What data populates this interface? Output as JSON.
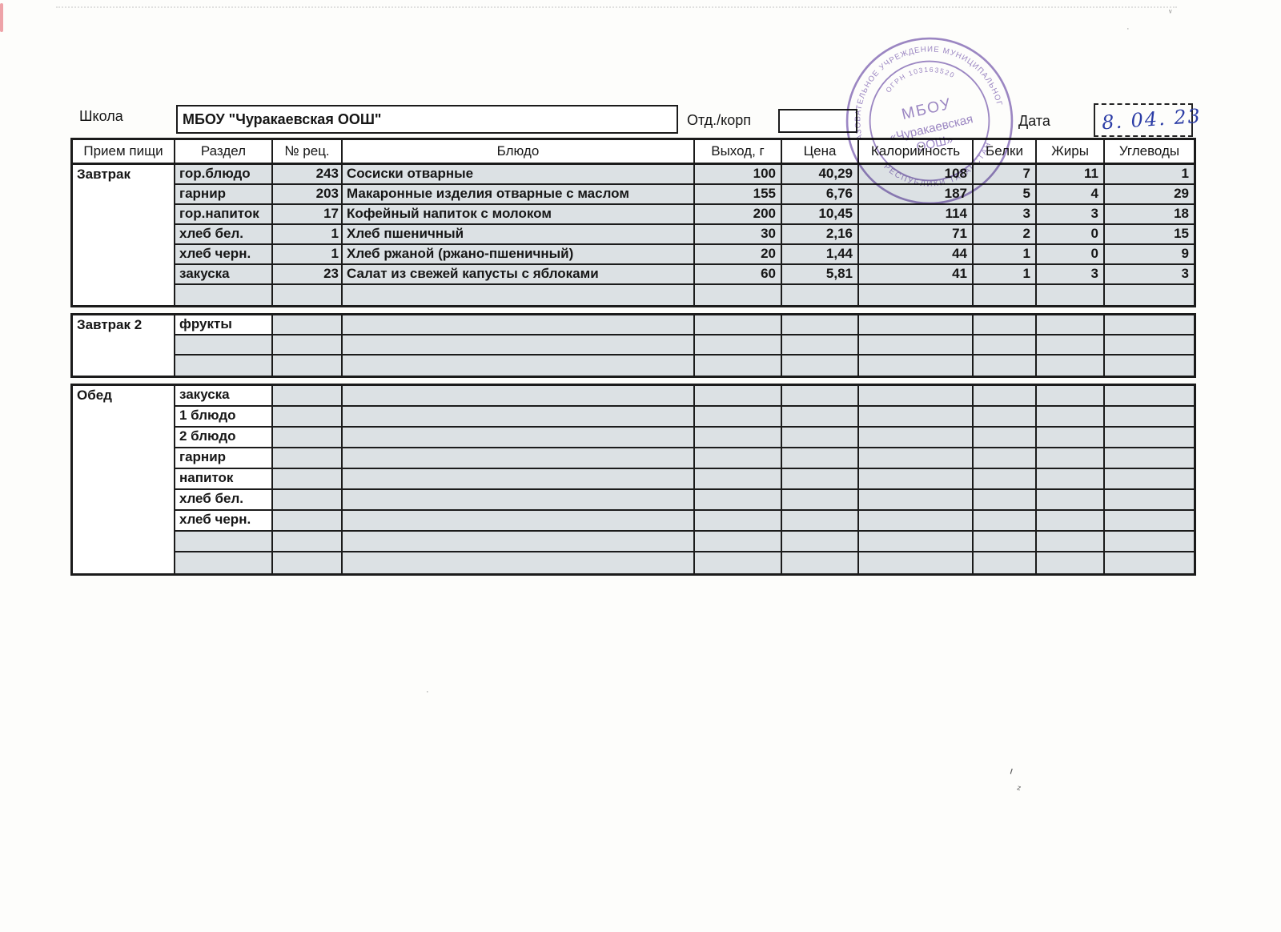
{
  "colors": {
    "stamp_purple": "#8b72bb",
    "ink_blue": "#2c3da6",
    "cell_shade": "#dce1e4",
    "border_dark": "#1b1b1b"
  },
  "form": {
    "school_label": "Школа",
    "school_name": "МБОУ \"Чуракаевская ООШ\"",
    "dept_label": "Отд./корп",
    "dept_value": "",
    "date_label": "Дата",
    "date_value": "8. 04. 23"
  },
  "stamp": {
    "ring_top": "ОБЩЕОБРАЗОВАТЕЛЬНОЕ УЧРЕЖДЕНИЕ МУНИЦИПАЛЬНОГО РАЙОНА",
    "ring_bottom": "РЕСПУБЛИКИ ТАТАРСТАН",
    "ogrn": "ОГРН 103163520",
    "center_line1": "МБОУ",
    "center_line2": "«Чуракаевская",
    "center_line3": "ООШ»"
  },
  "scan_marks": {
    "squiggle1": "ι",
    "squiggle2": "ᶻ",
    "speck1": "·",
    "speck2": "·",
    "speck3": "ᵛ"
  },
  "table": {
    "headers": [
      "Прием пищи",
      "Раздел",
      "№ рец.",
      "Блюдо",
      "Выход, г",
      "Цена",
      "Калорийность",
      "Белки",
      "Жиры",
      "Углеводы"
    ],
    "sections": [
      {
        "meal": "Завтрак",
        "rows": [
          {
            "razdel": "гор.блюдо",
            "white": false,
            "rec": "243",
            "dish": "Сосиски отварные",
            "out": "100",
            "price": "40,29",
            "cal": "108",
            "prot": "7",
            "fat": "11",
            "carb": "1"
          },
          {
            "razdel": "гарнир",
            "white": false,
            "rec": "203",
            "dish": "Макаронные изделия отварные с маслом",
            "out": "155",
            "price": "6,76",
            "cal": "187",
            "prot": "5",
            "fat": "4",
            "carb": "29"
          },
          {
            "razdel": "гор.напиток",
            "white": false,
            "rec": "17",
            "dish": "Кофейный напиток с молоком",
            "out": "200",
            "price": "10,45",
            "cal": "114",
            "prot": "3",
            "fat": "3",
            "carb": "18"
          },
          {
            "razdel": "хлеб бел.",
            "white": false,
            "rec": "1",
            "dish": "Хлеб пшеничный",
            "out": "30",
            "price": "2,16",
            "cal": "71",
            "prot": "2",
            "fat": "0",
            "carb": "15"
          },
          {
            "razdel": "хлеб черн.",
            "white": false,
            "rec": "1",
            "dish": "Хлеб ржаной (ржано-пшеничный)",
            "out": "20",
            "price": "1,44",
            "cal": "44",
            "prot": "1",
            "fat": "0",
            "carb": "9"
          },
          {
            "razdel": "закуска",
            "white": false,
            "rec": "23",
            "dish": "Салат из свежей капусты с яблоками",
            "out": "60",
            "price": "5,81",
            "cal": "41",
            "prot": "1",
            "fat": "3",
            "carb": "3"
          },
          {
            "razdel": "",
            "white": false,
            "rec": "",
            "dish": "",
            "out": "",
            "price": "",
            "cal": "",
            "prot": "",
            "fat": "",
            "carb": ""
          }
        ]
      },
      {
        "meal": "Завтрак 2",
        "rows": [
          {
            "razdel": "фрукты",
            "white": true,
            "rec": "",
            "dish": "",
            "out": "",
            "price": "",
            "cal": "",
            "prot": "",
            "fat": "",
            "carb": ""
          },
          {
            "razdel": "",
            "white": false,
            "rec": "",
            "dish": "",
            "out": "",
            "price": "",
            "cal": "",
            "prot": "",
            "fat": "",
            "carb": ""
          },
          {
            "razdel": "",
            "white": false,
            "rec": "",
            "dish": "",
            "out": "",
            "price": "",
            "cal": "",
            "prot": "",
            "fat": "",
            "carb": ""
          }
        ]
      },
      {
        "meal": "Обед",
        "rows": [
          {
            "razdel": "закуска",
            "white": true,
            "rec": "",
            "dish": "",
            "out": "",
            "price": "",
            "cal": "",
            "prot": "",
            "fat": "",
            "carb": ""
          },
          {
            "razdel": "1 блюдо",
            "white": true,
            "rec": "",
            "dish": "",
            "out": "",
            "price": "",
            "cal": "",
            "prot": "",
            "fat": "",
            "carb": ""
          },
          {
            "razdel": "2 блюдо",
            "white": true,
            "rec": "",
            "dish": "",
            "out": "",
            "price": "",
            "cal": "",
            "prot": "",
            "fat": "",
            "carb": ""
          },
          {
            "razdel": "гарнир",
            "white": true,
            "rec": "",
            "dish": "",
            "out": "",
            "price": "",
            "cal": "",
            "prot": "",
            "fat": "",
            "carb": ""
          },
          {
            "razdel": "напиток",
            "white": true,
            "rec": "",
            "dish": "",
            "out": "",
            "price": "",
            "cal": "",
            "prot": "",
            "fat": "",
            "carb": ""
          },
          {
            "razdel": "хлеб бел.",
            "white": true,
            "rec": "",
            "dish": "",
            "out": "",
            "price": "",
            "cal": "",
            "prot": "",
            "fat": "",
            "carb": ""
          },
          {
            "razdel": "хлеб черн.",
            "white": true,
            "rec": "",
            "dish": "",
            "out": "",
            "price": "",
            "cal": "",
            "prot": "",
            "fat": "",
            "carb": ""
          },
          {
            "razdel": "",
            "white": false,
            "rec": "",
            "dish": "",
            "out": "",
            "price": "",
            "cal": "",
            "prot": "",
            "fat": "",
            "carb": ""
          },
          {
            "razdel": "",
            "white": false,
            "rec": "",
            "dish": "",
            "out": "",
            "price": "",
            "cal": "",
            "prot": "",
            "fat": "",
            "carb": ""
          }
        ]
      }
    ]
  }
}
